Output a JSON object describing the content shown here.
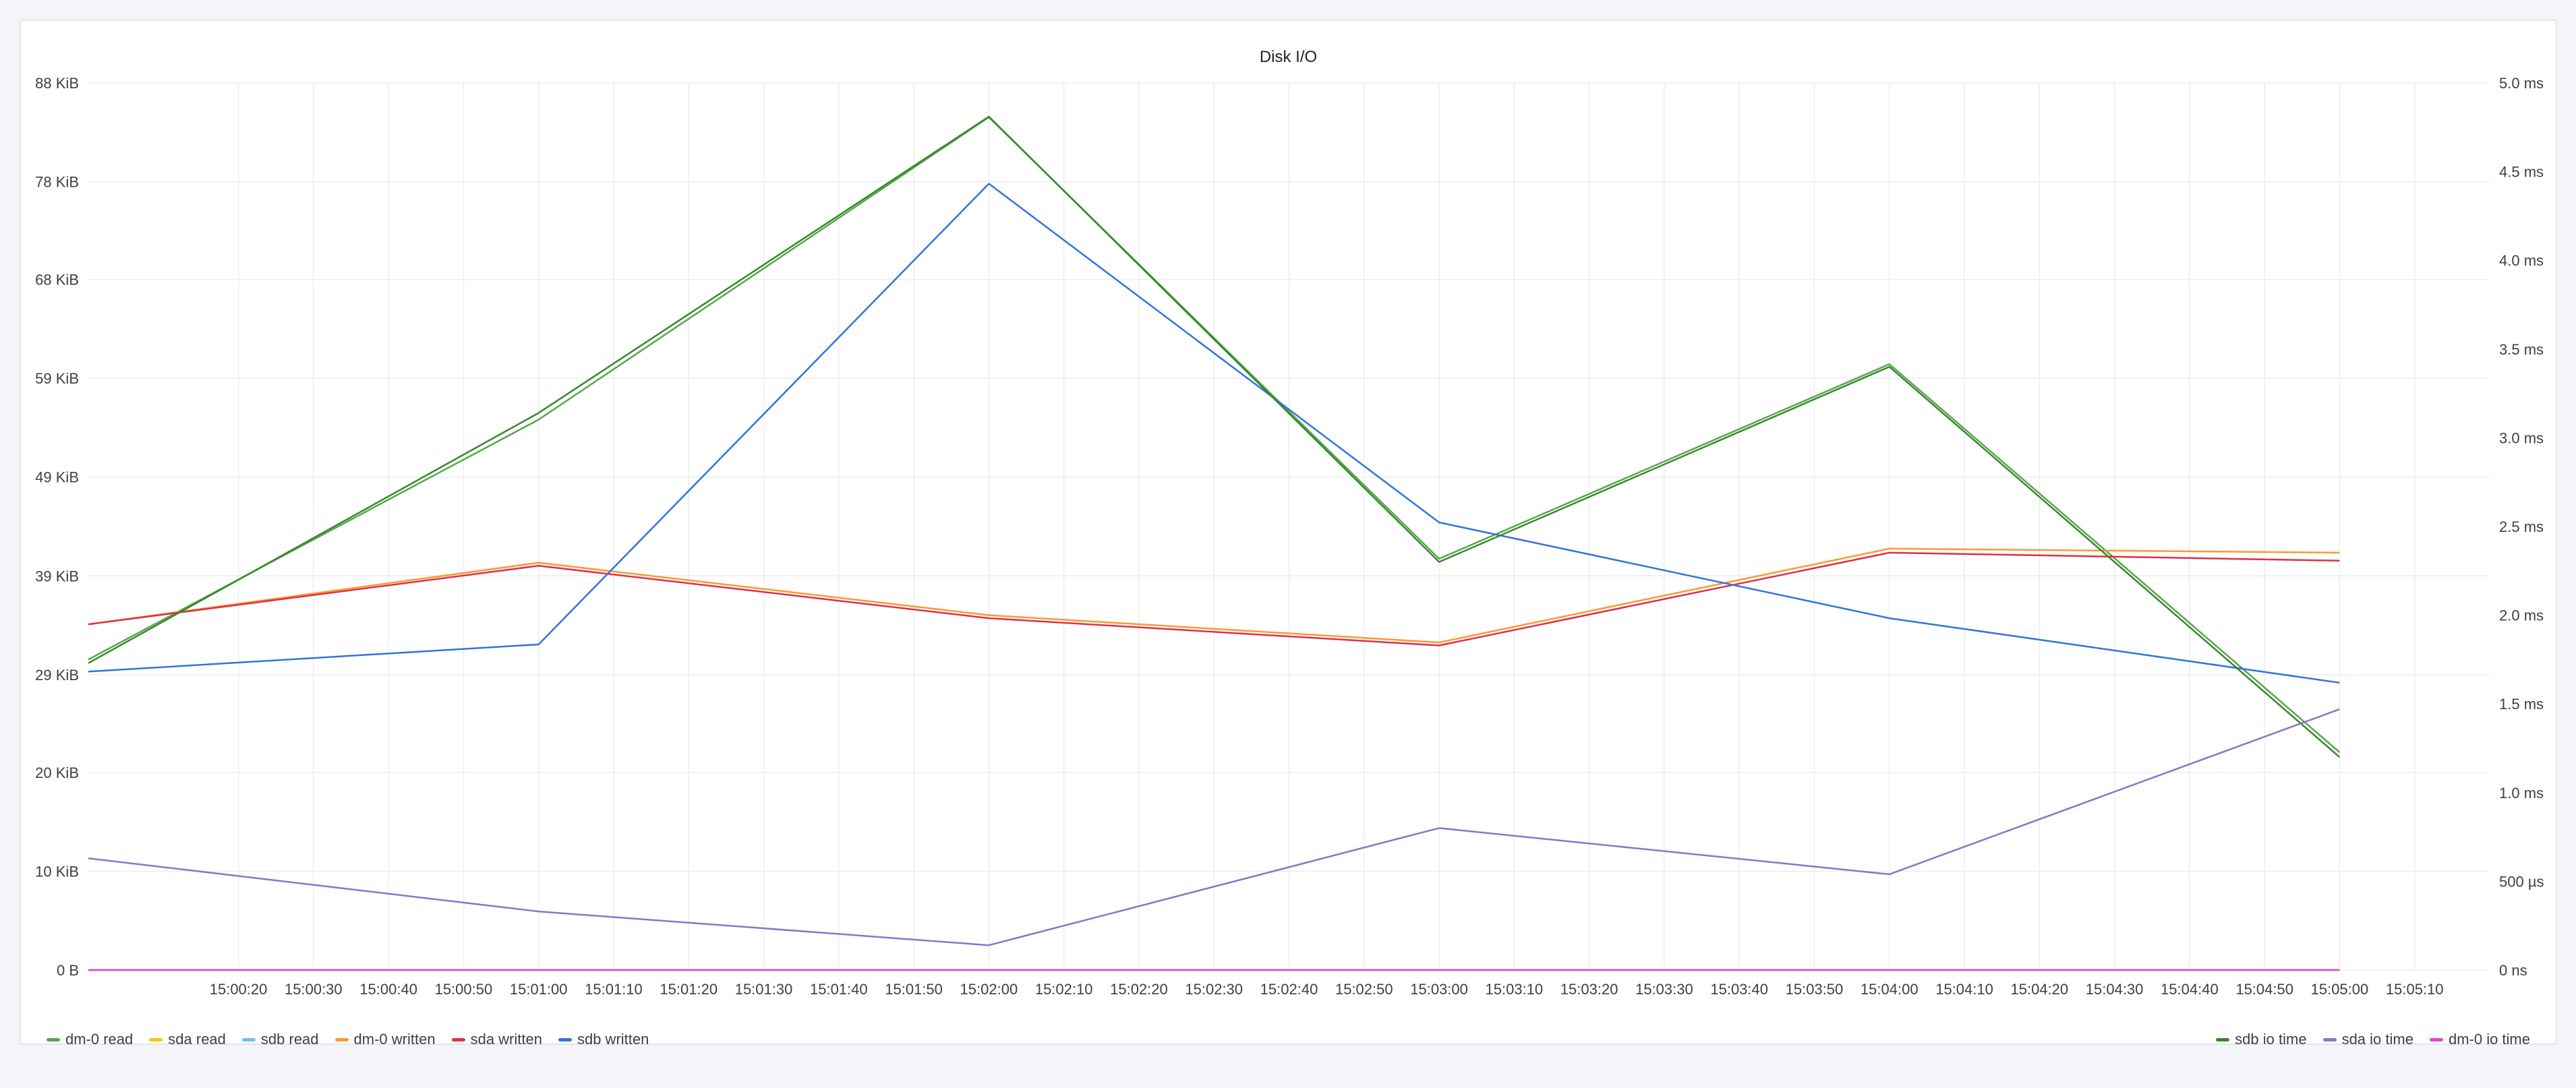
{
  "panel": {
    "title": "Disk I/O"
  },
  "chart_data": {
    "type": "line",
    "title": "Disk I/O",
    "x": [
      "15:00:00",
      "15:01:00",
      "15:02:00",
      "15:03:00",
      "15:04:00",
      "15:05:00"
    ],
    "x_tick_labels": [
      "15:00:20",
      "15:00:30",
      "15:00:40",
      "15:00:50",
      "15:01:00",
      "15:01:10",
      "15:01:20",
      "15:01:30",
      "15:01:40",
      "15:01:50",
      "15:02:00",
      "15:02:10",
      "15:02:20",
      "15:02:30",
      "15:02:40",
      "15:02:50",
      "15:03:00",
      "15:03:10",
      "15:03:20",
      "15:03:30",
      "15:03:40",
      "15:03:50",
      "15:04:00",
      "15:04:10",
      "15:04:20",
      "15:04:30",
      "15:04:40",
      "15:04:50",
      "15:05:00",
      "15:05:10"
    ],
    "y_left": {
      "unit": "KiB",
      "ylim": [
        0,
        88
      ],
      "tick_values": [
        0,
        9.8,
        19.6,
        29.3,
        39.1,
        48.9,
        58.7,
        68.5,
        78.2,
        88
      ],
      "tick_labels": [
        "0 B",
        "10 KiB",
        "20 KiB",
        "29 KiB",
        "39 KiB",
        "49 KiB",
        "59 KiB",
        "68 KiB",
        "78 KiB",
        "88 KiB"
      ]
    },
    "y_right": {
      "unit": "ms",
      "ylim": [
        0,
        5
      ],
      "tick_values": [
        0,
        0.5,
        1,
        1.5,
        2,
        2.5,
        3,
        3.5,
        4,
        4.5,
        5
      ],
      "tick_labels": [
        "0 ns",
        "500 µs",
        "1.0 ms",
        "1.5 ms",
        "2.0 ms",
        "2.5 ms",
        "3.0 ms",
        "3.5 ms",
        "4.0 ms",
        "4.5 ms",
        "5.0 ms"
      ]
    },
    "grid": true,
    "legend_left": [
      "dm-0 read",
      "sda read",
      "sdb read",
      "dm-0 written",
      "sda written",
      "sdb written"
    ],
    "legend_right": [
      "sdb io time",
      "sda io time",
      "dm-0 io time"
    ],
    "series": [
      {
        "name": "dm-0 read",
        "axis": "left",
        "color": "#56a64b",
        "values": [
          30.8,
          54.6,
          84.6,
          40.8,
          60.1,
          21.6
        ]
      },
      {
        "name": "sda read",
        "axis": "left",
        "color": "#f2cc0c",
        "values": [
          0,
          0,
          0,
          0,
          0,
          0
        ]
      },
      {
        "name": "sdb read",
        "axis": "left",
        "color": "#73bfe9",
        "values": [
          0,
          0,
          0,
          0,
          0,
          0
        ]
      },
      {
        "name": "dm-0 written",
        "axis": "left",
        "color": "#ff9830",
        "values": [
          34.3,
          40.4,
          35.2,
          32.5,
          41.8,
          41.4
        ]
      },
      {
        "name": "sda written",
        "axis": "left",
        "color": "#e02f44",
        "values": [
          34.3,
          40.1,
          34.9,
          32.2,
          41.4,
          40.6
        ]
      },
      {
        "name": "sdb written",
        "axis": "left",
        "color": "#3274d9",
        "values": [
          29.6,
          32.3,
          78.0,
          44.4,
          34.9,
          28.5
        ]
      },
      {
        "name": "sdb io time",
        "axis": "right",
        "color": "#37872d",
        "values": [
          1.73,
          3.14,
          4.81,
          2.3,
          3.4,
          1.2
        ]
      },
      {
        "name": "sda io time",
        "axis": "right",
        "color": "#8f72c5",
        "values": [
          0.63,
          0.33,
          0.14,
          0.8,
          0.54,
          1.47
        ]
      },
      {
        "name": "dm-0 io time",
        "axis": "right",
        "color": "#e444d0",
        "values": [
          0,
          0,
          0,
          0,
          0,
          0
        ]
      }
    ]
  }
}
